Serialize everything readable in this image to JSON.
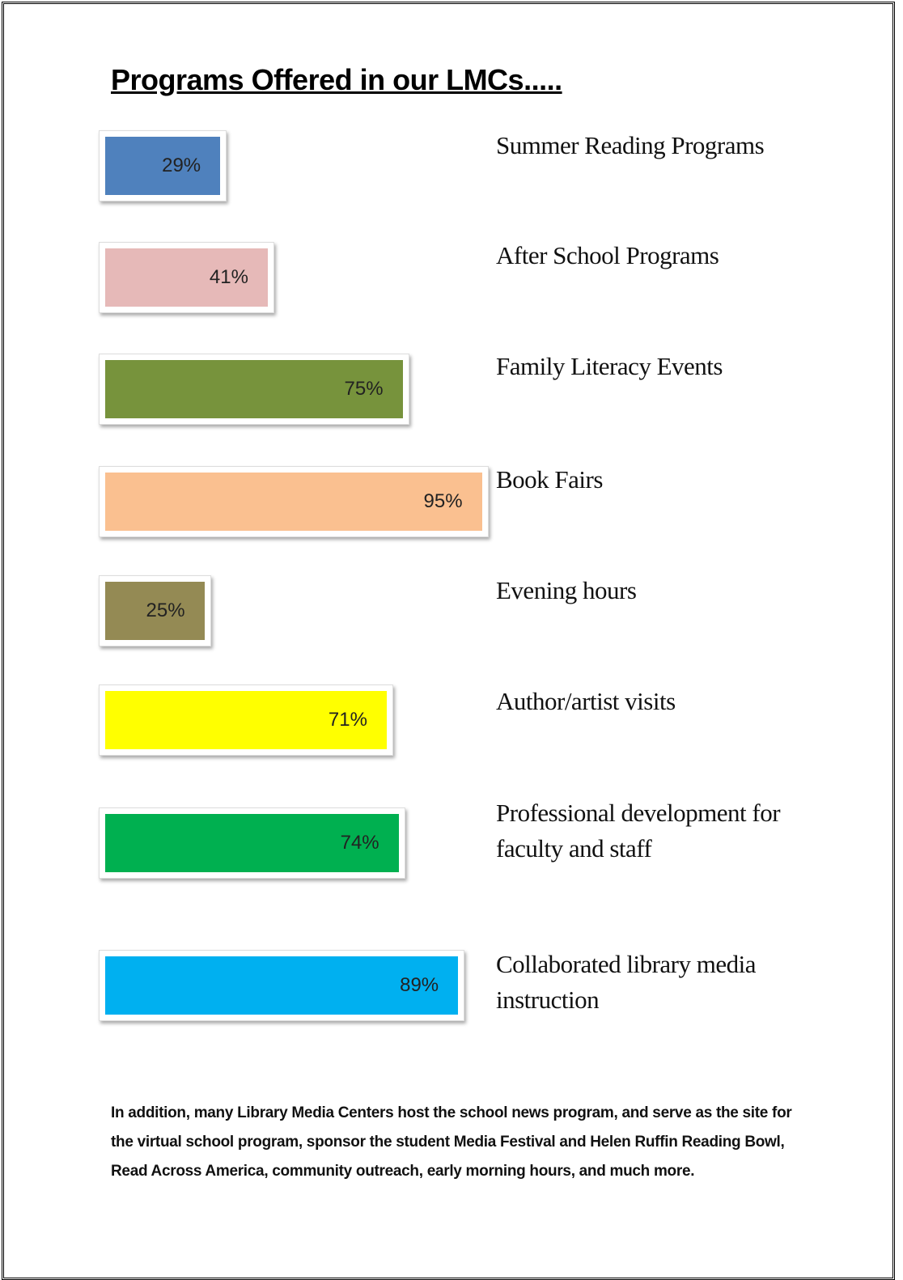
{
  "chart_data": {
    "type": "bar",
    "orientation": "horizontal",
    "title": "Programs Offered in our LMCs.....",
    "categories": [
      "Summer Reading Programs",
      "After School Programs",
      "Family Literacy Events",
      "Book Fairs",
      "Evening hours",
      "Author/artist visits",
      "Professional development for faculty and staff",
      "Collaborated library media instruction"
    ],
    "values": [
      29,
      41,
      75,
      95,
      25,
      71,
      74,
      89
    ],
    "value_labels": [
      "29%",
      "41%",
      "75%",
      "95%",
      "25%",
      "71%",
      "74%",
      "89%"
    ],
    "colors": [
      "#4f81bd",
      "#e6b9b8",
      "#77933c",
      "#fac090",
      "#948a54",
      "#ffff00",
      "#00b050",
      "#00b0f0"
    ],
    "note": "In addition, many Library Media Centers host the school news program, and serve as the site for the virtual school program, sponsor the student Media Festival and Helen Ruffin Reading Bowl, Read Across America, community outreach, early morning hours, and much more."
  }
}
